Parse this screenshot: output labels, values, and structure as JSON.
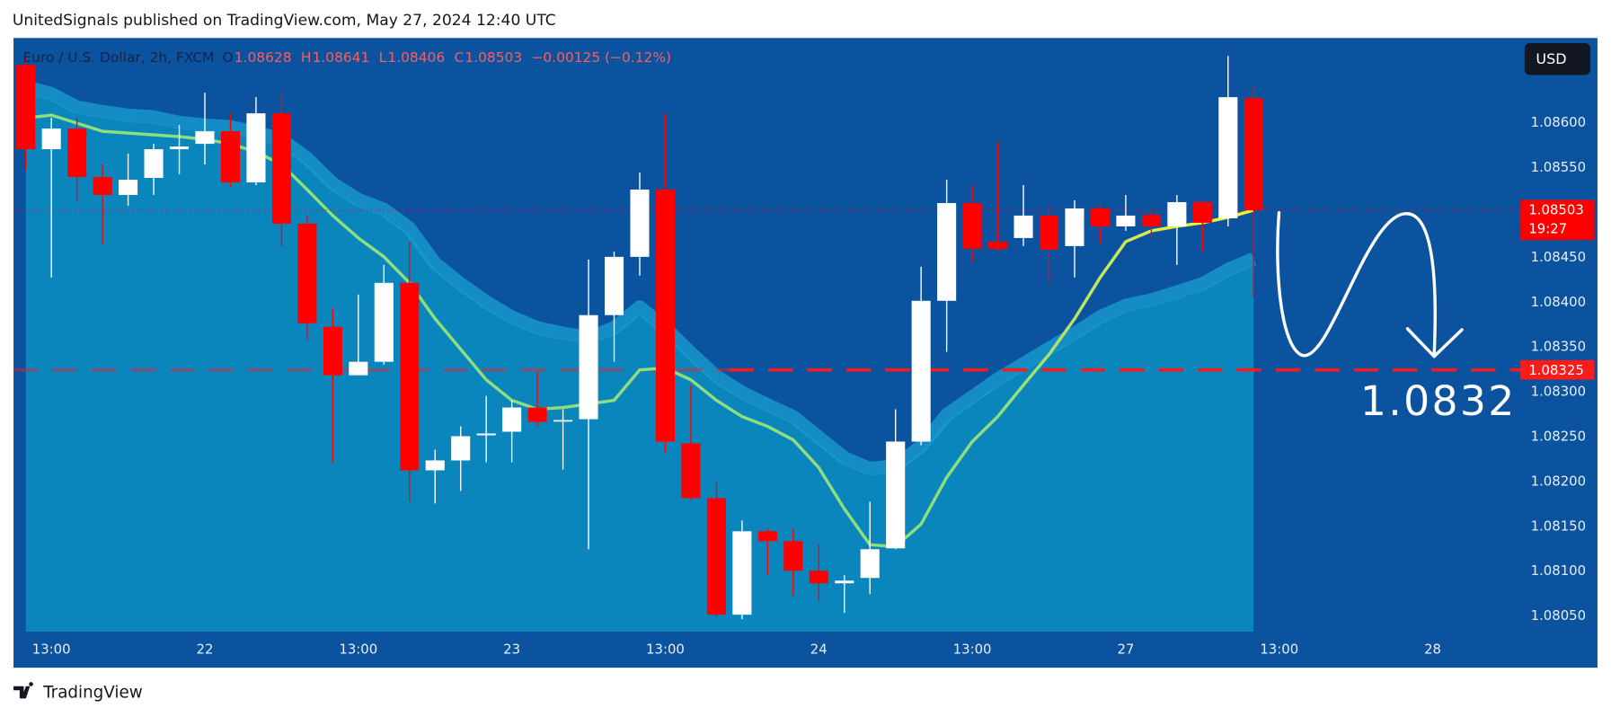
{
  "header": "UnitedSignals published on TradingView.com, May 27, 2024 12:40 UTC",
  "footer": "TradingView",
  "currency_button": "USD",
  "chart_data": {
    "type": "candlestick",
    "legend": {
      "symbol": "Euro / U.S. Dollar, 2h, FXCM",
      "o": "O",
      "h": "H",
      "l": "L",
      "c": "C",
      "change": "−0.00125 (−0.12%)"
    },
    "up_color": "#ffffff",
    "down_color": "#ff0000",
    "ma_colors": [
      "#8ede7e",
      "#f7ee3a"
    ],
    "band_color": "#1a9fd0",
    "area_color": "#0a86bd",
    "background": "#0b539f",
    "level": 1.08325,
    "level_color": "#ff1a1a",
    "level_annotation": "1.0832",
    "countdown": "19:27",
    "open": [
      1.08665,
      1.08571,
      1.08594,
      1.0854,
      1.0852,
      1.08539,
      1.08571,
      1.08577,
      1.08591,
      1.08534,
      1.08611,
      1.08488,
      1.08373,
      1.08319,
      1.08334,
      1.08422,
      1.08213,
      1.08224,
      1.08252,
      1.08256,
      1.08283,
      1.08268,
      1.0827,
      1.08386,
      1.08451,
      1.08526,
      1.08243,
      1.08182,
      1.08052,
      1.08145,
      1.08134,
      1.08101,
      1.08087,
      1.08093,
      1.08126,
      1.08245,
      1.08402,
      1.08511,
      1.08468,
      1.08472,
      1.08497,
      1.08463,
      1.08505,
      1.08485,
      1.08498,
      1.08485,
      1.08512,
      1.08494,
      1.08628
    ],
    "high": [
      1.08675,
      1.08606,
      1.08606,
      1.08554,
      1.08566,
      1.08577,
      1.08598,
      1.08634,
      1.08611,
      1.08629,
      1.08634,
      1.08497,
      1.08394,
      1.08409,
      1.08442,
      1.08468,
      1.08236,
      1.08262,
      1.08296,
      1.08291,
      1.08323,
      1.08281,
      1.08448,
      1.08457,
      1.08545,
      1.08611,
      1.08308,
      1.08199,
      1.08157,
      1.08148,
      1.08148,
      1.0813,
      1.08096,
      1.08178,
      1.08281,
      1.0844,
      1.08537,
      1.08531,
      1.08579,
      1.08531,
      1.08508,
      1.08514,
      1.08508,
      1.0852,
      1.08503,
      1.0852,
      1.08514,
      1.08675,
      1.08641
    ],
    "low": [
      1.08548,
      1.08428,
      1.08514,
      1.08465,
      1.08508,
      1.0852,
      1.08543,
      1.08554,
      1.08529,
      1.08531,
      1.08463,
      1.08359,
      1.08222,
      1.08319,
      1.08331,
      1.08178,
      1.08176,
      1.0819,
      1.08222,
      1.08222,
      1.08262,
      1.08214,
      1.08125,
      1.08334,
      1.0843,
      1.08233,
      1.0818,
      1.0805,
      1.08047,
      1.08096,
      1.08073,
      1.08067,
      1.08054,
      1.08075,
      1.08125,
      1.08241,
      1.08345,
      1.08445,
      1.08457,
      1.08463,
      1.08421,
      1.08428,
      1.08466,
      1.0848,
      1.08471,
      1.08442,
      1.08457,
      1.08485,
      1.08406
    ],
    "close": [
      1.08571,
      1.08594,
      1.0854,
      1.0852,
      1.08537,
      1.08571,
      1.08574,
      1.08591,
      1.08534,
      1.08611,
      1.08488,
      1.08377,
      1.08319,
      1.08334,
      1.08422,
      1.08213,
      1.08224,
      1.08251,
      1.08254,
      1.08283,
      1.08267,
      1.08269,
      1.08386,
      1.08451,
      1.08526,
      1.08245,
      1.08182,
      1.08052,
      1.08145,
      1.08134,
      1.08101,
      1.08087,
      1.0809,
      1.08125,
      1.08245,
      1.08402,
      1.08511,
      1.0846,
      1.0846,
      1.08497,
      1.08459,
      1.08505,
      1.08485,
      1.08497,
      1.08485,
      1.08512,
      1.08489,
      1.08629,
      1.08503
    ],
    "ma": [
      1.08606,
      1.08609,
      1.086,
      1.08591,
      1.08589,
      1.08587,
      1.08585,
      1.08582,
      1.08577,
      1.08568,
      1.08554,
      1.08526,
      1.08497,
      1.08472,
      1.08451,
      1.08422,
      1.08382,
      1.08348,
      1.08314,
      1.08291,
      1.08281,
      1.08283,
      1.08287,
      1.08291,
      1.08325,
      1.08327,
      1.08314,
      1.08291,
      1.08273,
      1.08262,
      1.08247,
      1.08216,
      1.0817,
      1.0813,
      1.08128,
      1.08153,
      1.08205,
      1.08245,
      1.08273,
      1.08308,
      1.08342,
      1.08382,
      1.08428,
      1.08468,
      1.0848,
      1.08485,
      1.08489,
      1.08495,
      1.08503
    ],
    "band": [
      1.08634,
      1.08626,
      1.08611,
      1.08606,
      1.08602,
      1.086,
      1.08594,
      1.08591,
      1.08589,
      1.08583,
      1.08575,
      1.08554,
      1.08526,
      1.08508,
      1.08497,
      1.08476,
      1.08437,
      1.08414,
      1.08394,
      1.08377,
      1.08365,
      1.08359,
      1.08354,
      1.08365,
      1.08388,
      1.08365,
      1.08337,
      1.08311,
      1.08293,
      1.08279,
      1.08266,
      1.08243,
      1.0822,
      1.08208,
      1.08211,
      1.08233,
      1.08268,
      1.08288,
      1.08308,
      1.08325,
      1.08342,
      1.08359,
      1.08377,
      1.0839,
      1.08396,
      1.08405,
      1.08414,
      1.0843,
      1.08442
    ],
    "xlim": [
      -0.48,
      58.43
    ],
    "xticks": [
      {
        "value": 1,
        "label": "13:00"
      },
      {
        "value": 7,
        "label": "22"
      },
      {
        "value": 13,
        "label": "13:00"
      },
      {
        "value": 19,
        "label": "23"
      },
      {
        "value": 25,
        "label": "13:00"
      },
      {
        "value": 31,
        "label": "24"
      },
      {
        "value": 37,
        "label": "13:00"
      },
      {
        "value": 43,
        "label": "27"
      },
      {
        "value": 49,
        "label": "13:00"
      },
      {
        "value": 55,
        "label": "28"
      }
    ],
    "ylim": [
      1.08033,
      1.08695
    ],
    "yticks": [
      {
        "value": 1.0805,
        "label": "1.08050"
      },
      {
        "value": 1.081,
        "label": "1.08100"
      },
      {
        "value": 1.0815,
        "label": "1.08150"
      },
      {
        "value": 1.082,
        "label": "1.08200"
      },
      {
        "value": 1.0825,
        "label": "1.08250"
      },
      {
        "value": 1.083,
        "label": "1.08300"
      },
      {
        "value": 1.0835,
        "label": "1.08350"
      },
      {
        "value": 1.084,
        "label": "1.08400"
      },
      {
        "value": 1.0845,
        "label": "1.08450"
      },
      {
        "value": 1.0855,
        "label": "1.08550"
      },
      {
        "value": 1.086,
        "label": "1.08600"
      }
    ]
  }
}
